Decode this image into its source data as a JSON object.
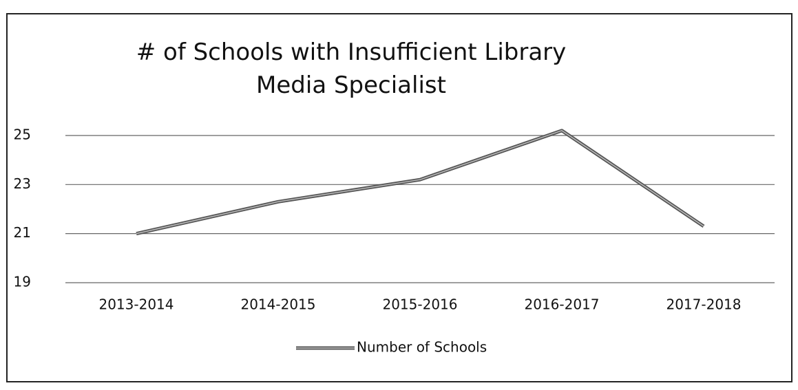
{
  "chart_data": {
    "type": "line",
    "title": "# of Schools with Insufficient Library Media Specialist",
    "categories": [
      "2013-2014",
      "2014-2015",
      "2015-2016",
      "2016-2017",
      "2017-2018"
    ],
    "series": [
      {
        "name": "Number of Schools",
        "color": "#555555",
        "values": [
          21,
          22.3,
          23.2,
          25.2,
          21.3
        ]
      }
    ],
    "ylim": [
      19,
      25.4
    ],
    "yticks": [
      19,
      21,
      23,
      25
    ],
    "grid": true,
    "legend": "bottom"
  }
}
